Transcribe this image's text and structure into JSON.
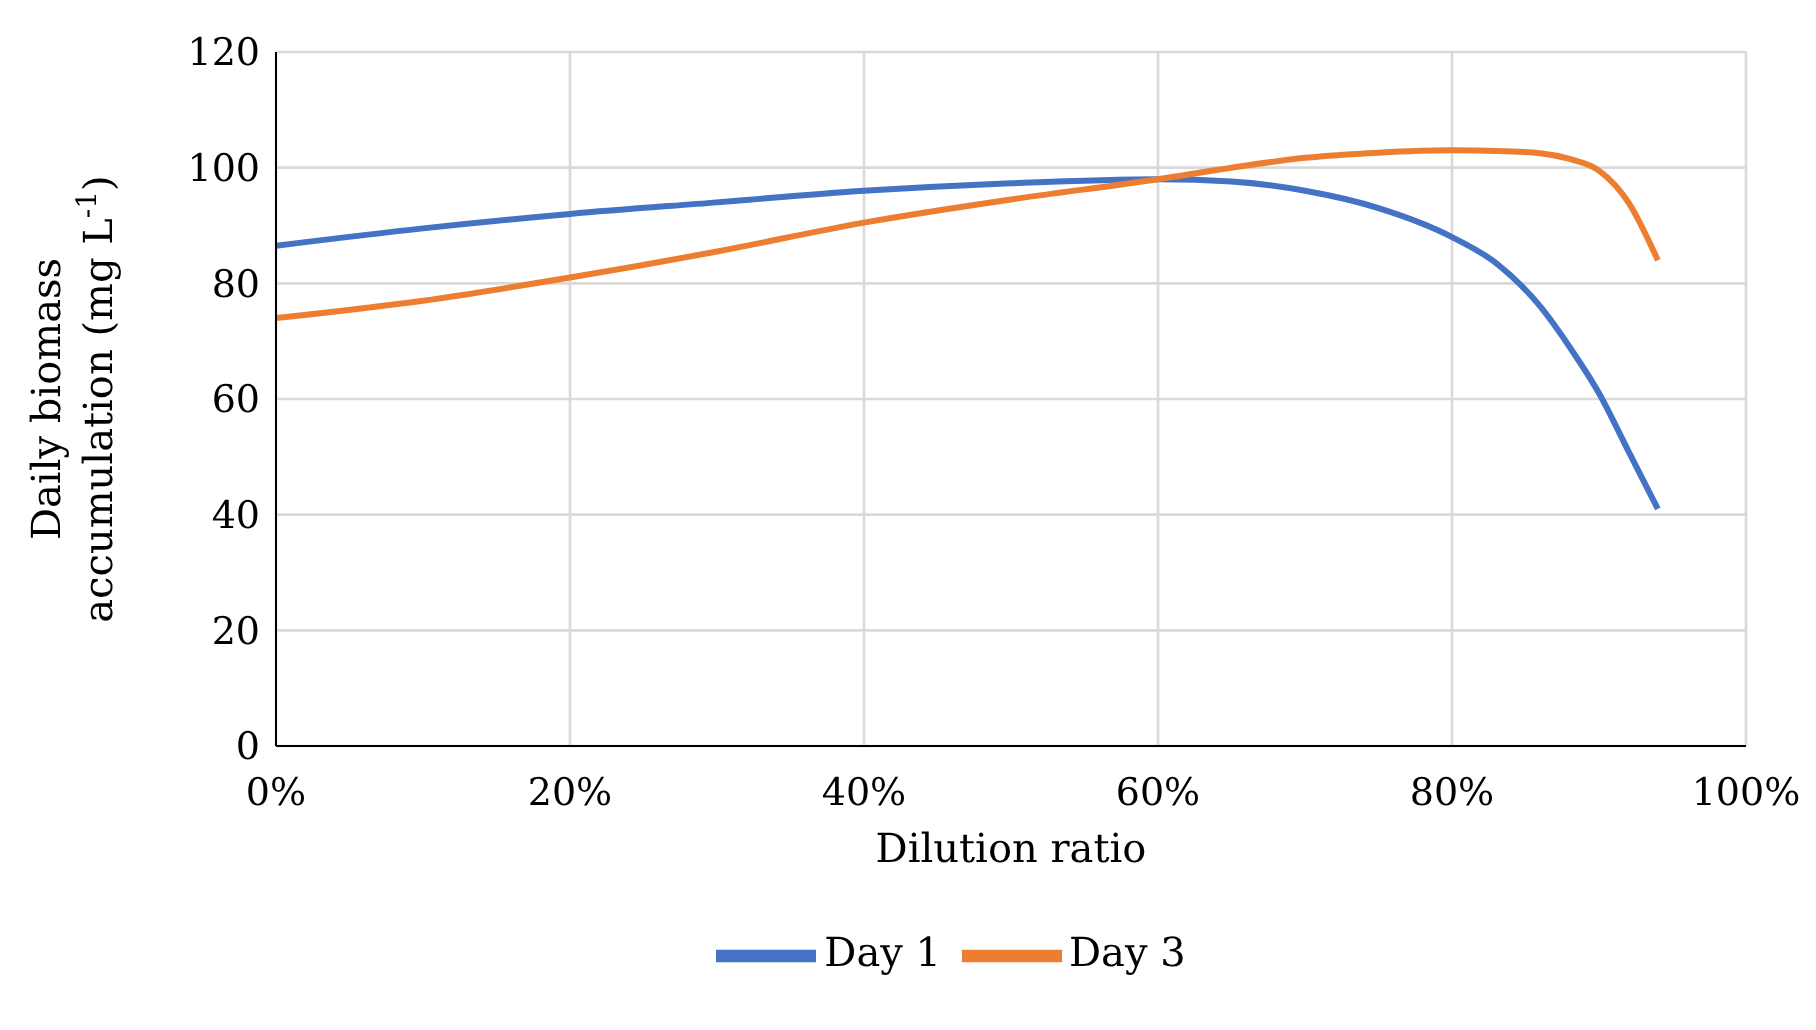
{
  "chart_data": {
    "type": "line",
    "xlabel": "Dilution ratio",
    "ylabel": "Daily biomass accumulation (mg L$^{-1}$)",
    "x": [
      0,
      10,
      20,
      30,
      40,
      50,
      60,
      65,
      70,
      75,
      80,
      83,
      86,
      88,
      90,
      92,
      94
    ],
    "series": [
      {
        "name": "Day 1",
        "color": "#4472c4",
        "values": [
          86.5,
          89.5,
          92,
          94,
          96,
          97.3,
          98,
          97.6,
          96,
          93,
          88,
          83.5,
          76,
          69,
          61,
          51,
          41
        ]
      },
      {
        "name": "Day 3",
        "color": "#ed7d31",
        "values": [
          74,
          77,
          81,
          85.5,
          90.5,
          94.5,
          98,
          100,
          101.7,
          102.6,
          103,
          102.9,
          102.5,
          101.5,
          99.5,
          94,
          84
        ]
      }
    ],
    "xlim": [
      0,
      100
    ],
    "xticks": [
      {
        "value": 0,
        "label": "0%"
      },
      {
        "value": 20,
        "label": "20%"
      },
      {
        "value": 40,
        "label": "40%"
      },
      {
        "value": 60,
        "label": "60%"
      },
      {
        "value": 80,
        "label": "80%"
      },
      {
        "value": 100,
        "label": "100%"
      }
    ],
    "ylim": [
      0,
      120
    ],
    "yticks": [
      0,
      20,
      40,
      60,
      80,
      100,
      120
    ],
    "grid": true,
    "legend": "bottom",
    "marker": "none",
    "line_style": "solid"
  }
}
